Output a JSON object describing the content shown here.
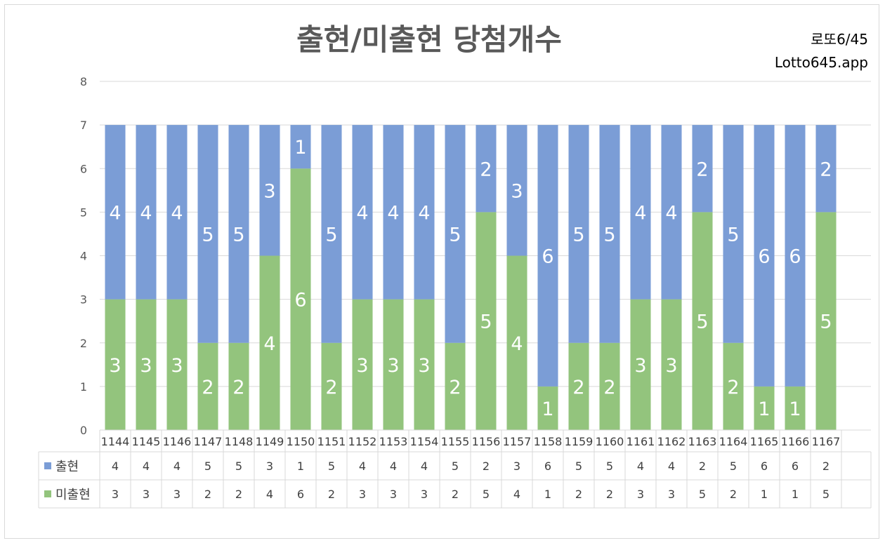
{
  "chart_data": {
    "type": "bar",
    "stacked": true,
    "title": "출현/미출현 당첨개수",
    "brand_line1": "로또6/45",
    "brand_line2": "Lotto645.app",
    "categories": [
      "1144",
      "1145",
      "1146",
      "1147",
      "1148",
      "1149",
      "1150",
      "1151",
      "1152",
      "1153",
      "1154",
      "1155",
      "1156",
      "1157",
      "1158",
      "1159",
      "1160",
      "1161",
      "1162",
      "1163",
      "1164",
      "1165",
      "1166",
      "1167"
    ],
    "series": [
      {
        "name": "미출현",
        "color": "#93c47d",
        "values": [
          3,
          3,
          3,
          2,
          2,
          4,
          6,
          2,
          3,
          3,
          3,
          2,
          5,
          4,
          1,
          2,
          2,
          3,
          3,
          5,
          2,
          1,
          1,
          5
        ]
      },
      {
        "name": "출현",
        "color": "#7b9dd6",
        "values": [
          4,
          4,
          4,
          5,
          5,
          3,
          1,
          5,
          4,
          4,
          4,
          5,
          2,
          3,
          6,
          5,
          5,
          4,
          4,
          2,
          5,
          6,
          6,
          2
        ]
      }
    ],
    "table_rows": [
      {
        "name": "출현",
        "color": "#7b9dd6",
        "values": [
          4,
          4,
          4,
          5,
          5,
          3,
          1,
          5,
          4,
          4,
          4,
          5,
          2,
          3,
          6,
          5,
          5,
          4,
          4,
          2,
          5,
          6,
          6,
          2
        ]
      },
      {
        "name": "미출현",
        "color": "#93c47d",
        "values": [
          3,
          3,
          3,
          2,
          2,
          4,
          6,
          2,
          3,
          3,
          3,
          2,
          5,
          4,
          1,
          2,
          2,
          3,
          3,
          5,
          2,
          1,
          1,
          5
        ]
      }
    ],
    "ylim": [
      0,
      8
    ],
    "yticks": [
      0,
      1,
      2,
      3,
      4,
      5,
      6,
      7,
      8
    ],
    "grid": true,
    "legend": "data-table"
  }
}
